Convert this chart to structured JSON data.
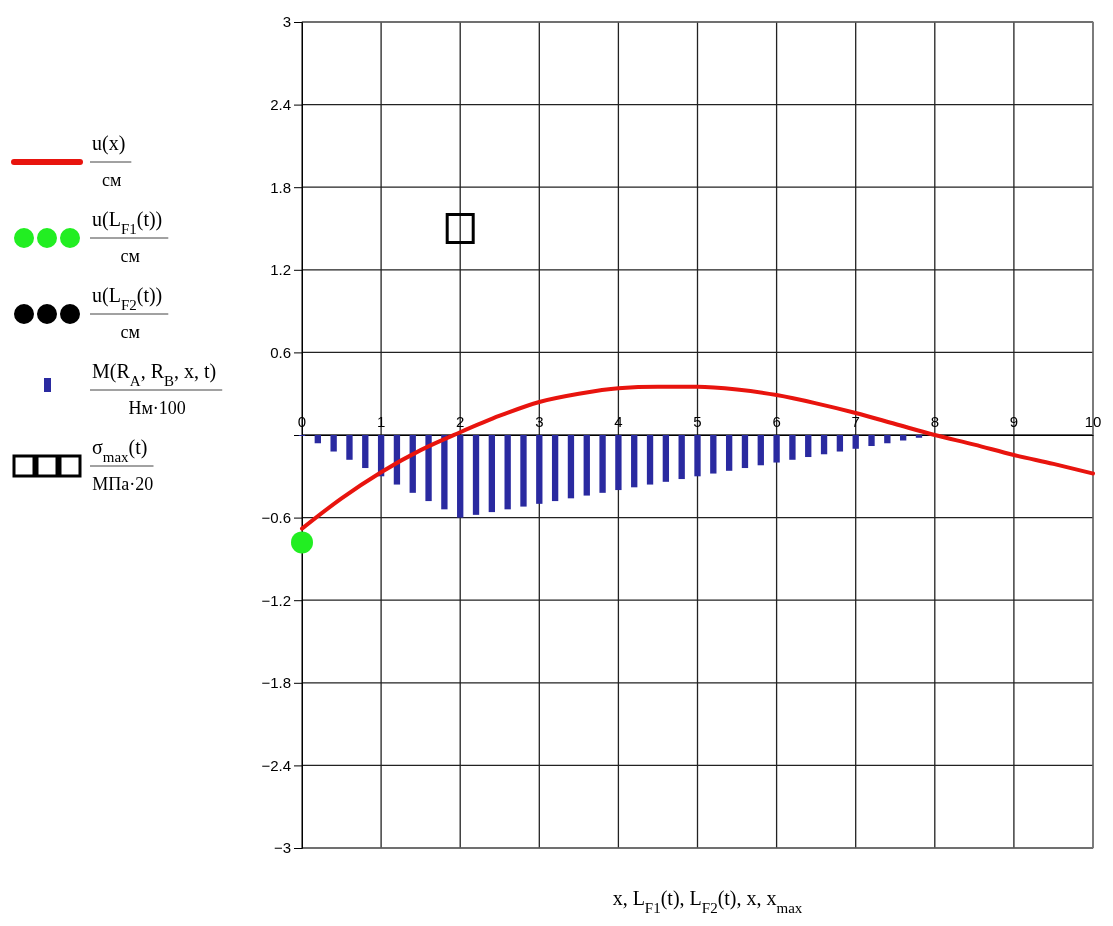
{
  "chart_data": {
    "type": "line",
    "xlabel": "x, L$_{F1}$(t), L$_{F2}$(t), x, x$_{max}$",
    "xlim": [
      0,
      10
    ],
    "xticks": [
      0,
      1,
      2,
      3,
      4,
      5,
      6,
      7,
      8,
      9,
      10
    ],
    "ylim": [
      -3,
      3
    ],
    "yticks": [
      {
        "value": -3,
        "label": "−3"
      },
      {
        "value": -2.4,
        "label": "−2.4"
      },
      {
        "value": -1.8,
        "label": "−1.8"
      },
      {
        "value": -1.2,
        "label": "−1.2"
      },
      {
        "value": -0.6,
        "label": "−0.6"
      },
      {
        "value": 0,
        "label": null
      },
      0.6,
      1.2,
      1.8,
      2.4,
      3
    ],
    "grid": true,
    "legend": "left",
    "series": [
      {
        "name": "u(x) см",
        "color": "#e8140e",
        "line_style": "solid",
        "x": [
          0,
          0.5,
          1,
          1.5,
          2,
          2.5,
          3,
          3.5,
          4,
          4.5,
          5,
          5.5,
          6,
          6.5,
          7,
          7.5,
          8,
          8.5,
          9,
          9.5,
          10
        ],
        "values": [
          -0.68,
          -0.46,
          -0.27,
          -0.11,
          0.02,
          0.14,
          0.24,
          0.3,
          0.34,
          0.35,
          0.35,
          0.33,
          0.29,
          0.23,
          0.16,
          0.08,
          0,
          -0.07,
          -0.145,
          -0.21,
          -0.28
        ]
      },
      {
        "name": "u(L$_{F1}$(t)) см",
        "type": "scatter",
        "marker": "circle",
        "color": "#22ee22",
        "x": [
          0
        ],
        "values": [
          -0.78
        ]
      },
      {
        "name": "u(L$_{F2}$(t)) см",
        "type": "scatter",
        "marker": "circle",
        "color": "#000000"
      },
      {
        "name": "M(R$_{A}$, R$_{B}$, x, t) Нм·100",
        "type": "bar",
        "color": "#2a2aa0",
        "x": [
          0,
          0.2,
          0.4,
          0.6,
          0.8,
          1,
          1.2,
          1.4,
          1.6,
          1.8,
          2,
          2.2,
          2.4,
          2.6,
          2.8,
          3,
          3.2,
          3.4,
          3.6,
          3.8,
          4,
          4.2,
          4.4,
          4.6,
          4.8,
          5,
          5.2,
          5.4,
          5.6,
          5.8,
          6,
          6.2,
          6.4,
          6.6,
          6.8,
          7,
          7.2,
          7.4,
          7.6,
          7.8,
          8
        ],
        "values": [
          0,
          -0.06,
          -0.12,
          -0.18,
          -0.24,
          -0.3,
          -0.36,
          -0.42,
          -0.48,
          -0.54,
          -0.6,
          -0.58,
          -0.56,
          -0.54,
          -0.52,
          -0.5,
          -0.48,
          -0.46,
          -0.44,
          -0.42,
          -0.4,
          -0.38,
          -0.36,
          -0.34,
          -0.32,
          -0.3,
          -0.28,
          -0.26,
          -0.24,
          -0.22,
          -0.2,
          -0.18,
          -0.16,
          -0.14,
          -0.12,
          -0.1,
          -0.08,
          -0.06,
          -0.04,
          -0.02,
          0
        ]
      },
      {
        "name": "σ$_{max}$(t) МПа·20",
        "type": "scatter",
        "marker": "square",
        "color": "#000000",
        "x": [
          2
        ],
        "values": [
          1.5
        ]
      }
    ]
  }
}
